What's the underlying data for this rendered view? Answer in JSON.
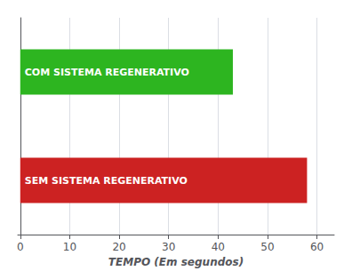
{
  "chart_data": {
    "type": "bar",
    "orientation": "horizontal",
    "categories": [
      "COM SISTEMA REGENERATIVO",
      "SEM SISTEMA REGENERATIVO"
    ],
    "values": [
      43,
      58
    ],
    "colors": [
      "#2db520",
      "#cc2222"
    ],
    "xlabel": "TEMPO (Em segundos)",
    "xlim": [
      -0.5,
      63.5
    ],
    "xticks": [
      0,
      10,
      20,
      30,
      40,
      50,
      60
    ],
    "grid": true,
    "tick_labels": "x"
  }
}
